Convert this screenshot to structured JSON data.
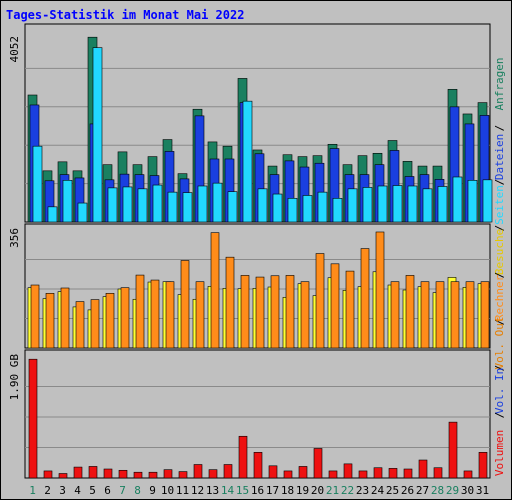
{
  "title": "Tages-Statistik im Monat Mai 2022",
  "colors": {
    "background": "#c0c0c0",
    "title": "#0000ff",
    "anfragen": "#1a8060",
    "dateien": "#1a3fe0",
    "seiten": "#22d8ff",
    "besuche": "#ffff33",
    "rechner": "#ff8c1a",
    "volumen": "#ee1111",
    "weekend_day": "#1a8060",
    "weekday_day": "#000000"
  },
  "right_labels": {
    "anfragen": "Anfragen",
    "dateien": "Dateien",
    "seiten": "Seiten",
    "besuche": "Besuche",
    "rechner": "Rechner",
    "vol_out": "Vol. Out",
    "vol_in": "Vol. In",
    "volumen": "Volumen"
  },
  "chart_data": [
    {
      "type": "bar",
      "panel": "hits",
      "ymax_label": "4052",
      "ylim": [
        0,
        4052
      ],
      "categories": [
        "1",
        "2",
        "3",
        "4",
        "5",
        "6",
        "7",
        "8",
        "9",
        "10",
        "11",
        "12",
        "13",
        "14",
        "15",
        "16",
        "17",
        "18",
        "19",
        "20",
        "21",
        "22",
        "23",
        "24",
        "25",
        "26",
        "27",
        "28",
        "29",
        "30",
        "31"
      ],
      "series": [
        {
          "name": "Anfragen",
          "values": [
            2680,
            1080,
            1270,
            1080,
            3900,
            1210,
            1480,
            1210,
            1380,
            1740,
            1020,
            2380,
            1690,
            1600,
            3030,
            1520,
            1180,
            1420,
            1380,
            1400,
            1640,
            1210,
            1400,
            1450,
            1720,
            1280,
            1180,
            1180,
            2800,
            2280,
            2520
          ]
        },
        {
          "name": "Dateien",
          "values": [
            2470,
            870,
            1000,
            930,
            2070,
            890,
            1010,
            1000,
            980,
            1490,
            910,
            2240,
            1330,
            1330,
            2520,
            1440,
            1000,
            1290,
            1160,
            1240,
            1550,
            1000,
            1000,
            1210,
            1510,
            960,
            1000,
            900,
            2430,
            2070,
            2250
          ]
        },
        {
          "name": "Seiten",
          "values": [
            1600,
            320,
            880,
            400,
            3680,
            720,
            740,
            700,
            780,
            630,
            620,
            760,
            820,
            640,
            2550,
            700,
            590,
            500,
            560,
            630,
            500,
            700,
            730,
            760,
            770,
            760,
            700,
            750,
            950,
            880,
            890
          ]
        }
      ]
    },
    {
      "type": "bar",
      "panel": "visits",
      "ymax_label": "356",
      "ylim": [
        0,
        356
      ],
      "categories": [
        "1",
        "2",
        "3",
        "4",
        "5",
        "6",
        "7",
        "8",
        "9",
        "10",
        "11",
        "12",
        "13",
        "14",
        "15",
        "16",
        "17",
        "18",
        "19",
        "20",
        "21",
        "22",
        "23",
        "24",
        "25",
        "26",
        "27",
        "28",
        "29",
        "30",
        "31"
      ],
      "series": [
        {
          "name": "Besuche",
          "values": [
            182,
            149,
            170,
            124,
            115,
            155,
            178,
            147,
            199,
            200,
            161,
            147,
            186,
            180,
            179,
            180,
            184,
            153,
            194,
            158,
            212,
            174,
            185,
            230,
            190,
            175,
            185,
            167,
            213,
            183,
            194
          ]
        },
        {
          "name": "Rechner",
          "values": [
            190,
            165,
            181,
            140,
            146,
            165,
            182,
            220,
            205,
            200,
            264,
            200,
            348,
            274,
            219,
            214,
            218,
            219,
            200,
            285,
            254,
            232,
            300,
            350,
            200,
            219,
            200,
            200,
            200,
            200,
            200
          ]
        }
      ]
    },
    {
      "type": "bar",
      "panel": "volume",
      "ymax_label": "1.90 GB",
      "ylim": [
        0,
        1.9
      ],
      "categories": [
        "1",
        "2",
        "3",
        "4",
        "5",
        "6",
        "7",
        "8",
        "9",
        "10",
        "11",
        "12",
        "13",
        "14",
        "15",
        "16",
        "17",
        "18",
        "19",
        "20",
        "21",
        "22",
        "23",
        "24",
        "25",
        "26",
        "27",
        "28",
        "29",
        "30",
        "31"
      ],
      "series": [
        {
          "name": "Volumen",
          "values": [
            1.85,
            0.11,
            0.07,
            0.17,
            0.18,
            0.14,
            0.12,
            0.09,
            0.09,
            0.13,
            0.1,
            0.21,
            0.13,
            0.21,
            0.65,
            0.4,
            0.19,
            0.11,
            0.18,
            0.46,
            0.11,
            0.22,
            0.11,
            0.16,
            0.15,
            0.14,
            0.28,
            0.16,
            0.87,
            0.11,
            0.4
          ]
        }
      ]
    }
  ],
  "weekend_days": [
    "1",
    "7",
    "8",
    "14",
    "15",
    "21",
    "22",
    "28",
    "29"
  ]
}
